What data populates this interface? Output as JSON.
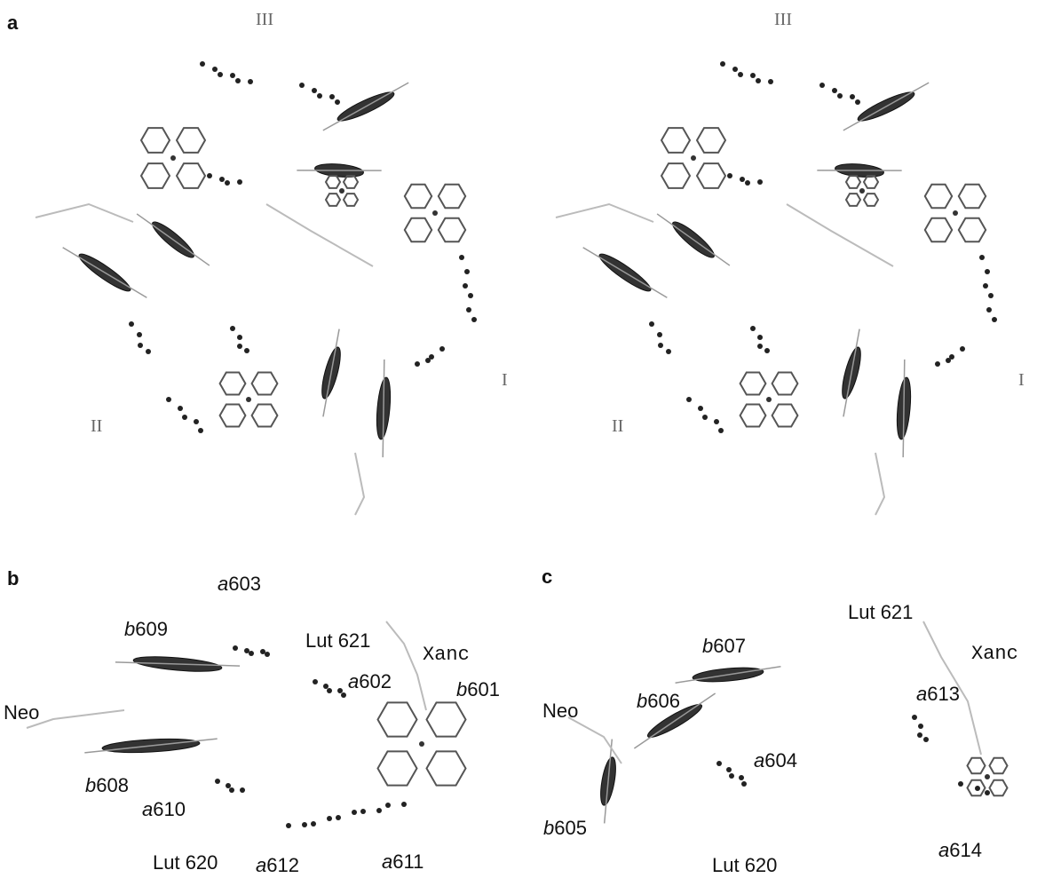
{
  "panels": [
    {
      "label": "a",
      "views": [
        {
          "labels": [
            "III",
            "II",
            "I"
          ]
        },
        {
          "labels": [
            "III",
            "II",
            "I"
          ]
        }
      ]
    },
    {
      "label": "b",
      "labels": [
        "a603",
        "b609",
        "Lut 621",
        "Xanc",
        "a602",
        "b601",
        "Neo",
        "b608",
        "a610",
        "Lut 620",
        "a612",
        "a611"
      ]
    },
    {
      "label": "c",
      "labels": [
        "Lut 621",
        "b607",
        "Xanc",
        "Neo",
        "b606",
        "a613",
        "a604",
        "b605",
        "Lut 620",
        "a614"
      ]
    }
  ]
}
